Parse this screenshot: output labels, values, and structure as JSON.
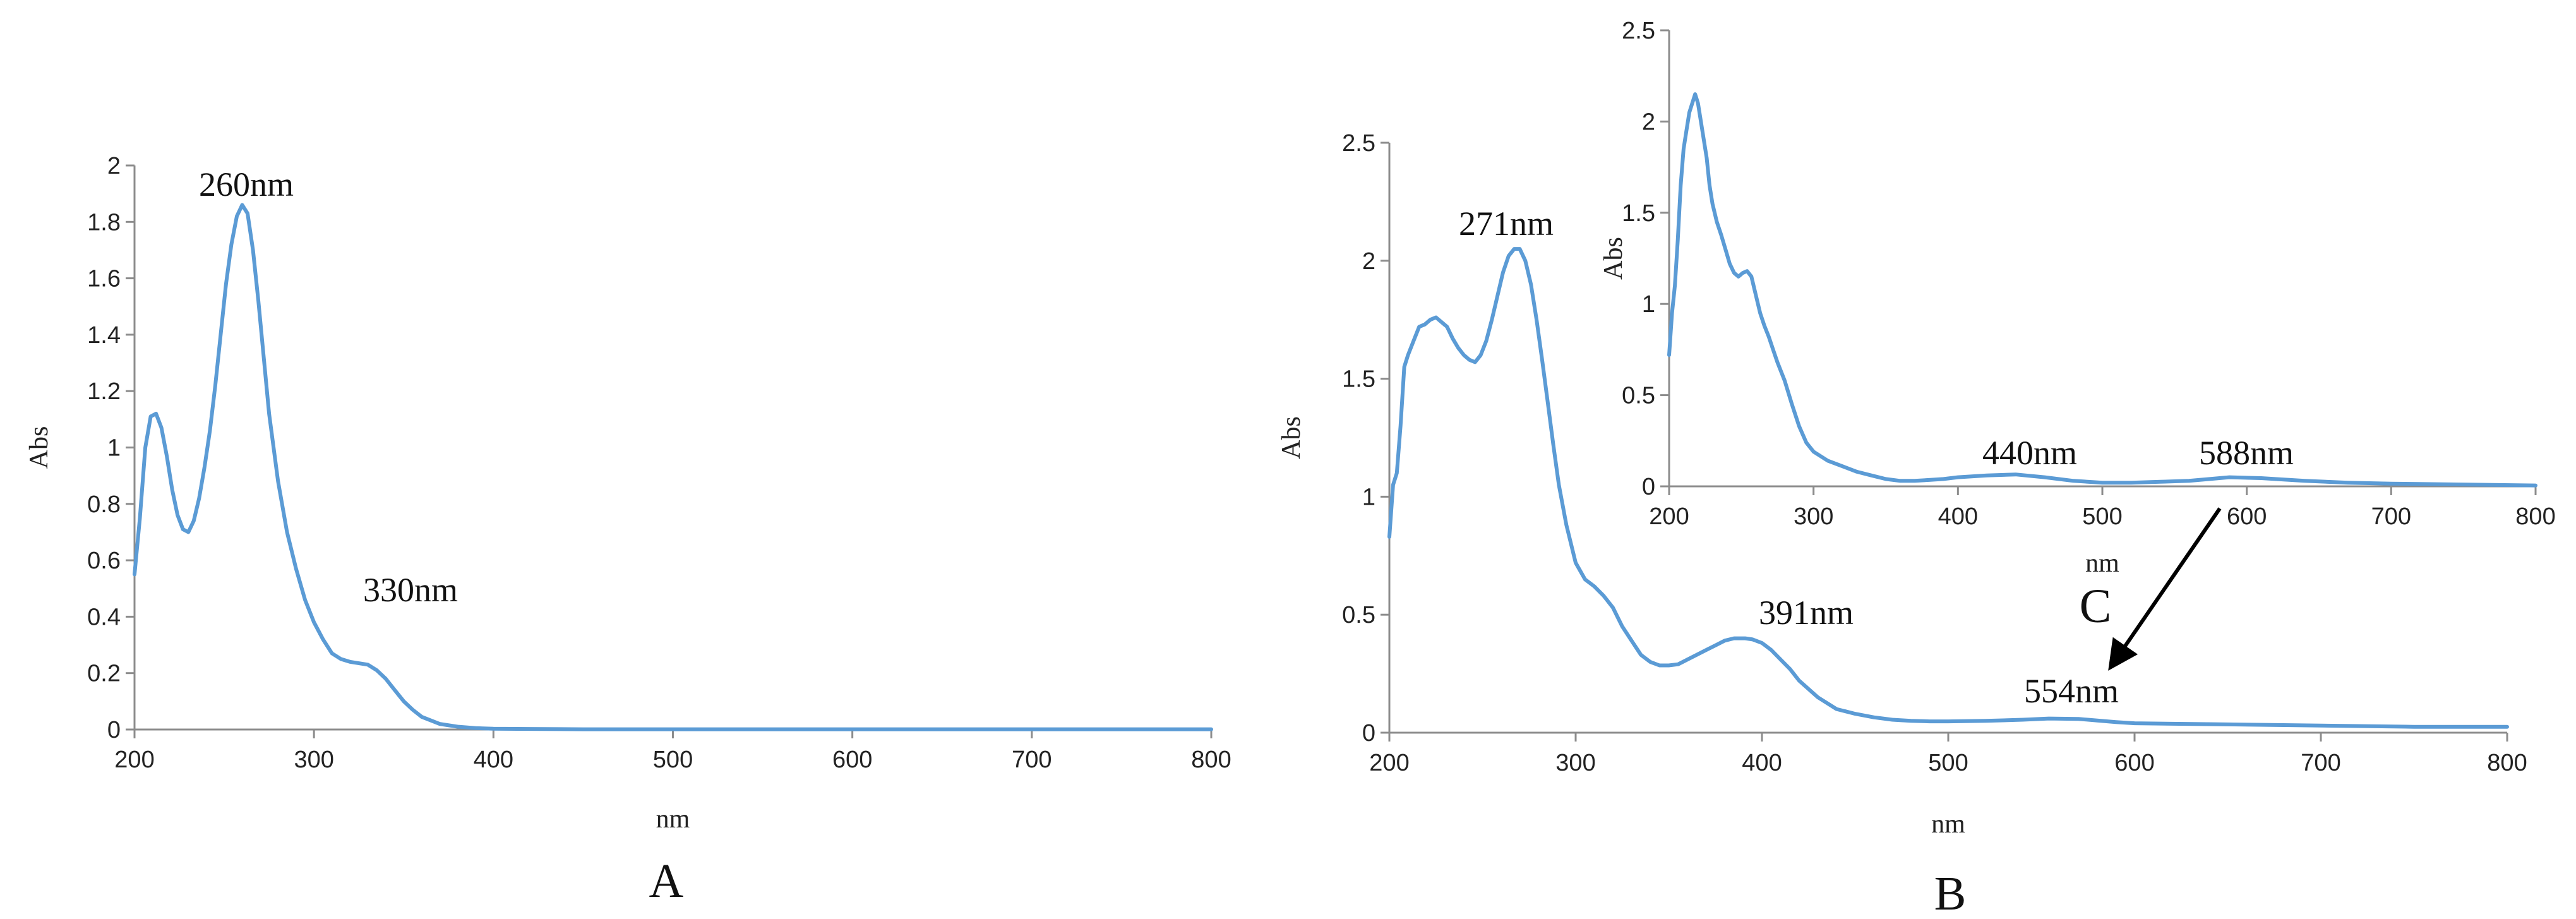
{
  "chart_data": [
    {
      "id": "A",
      "type": "line",
      "panel_label": "A",
      "xlabel": "nm",
      "ylabel": "Abs",
      "xlim": [
        200,
        800
      ],
      "ylim": [
        0,
        2
      ],
      "xticks": [
        200,
        300,
        400,
        500,
        600,
        700,
        800
      ],
      "yticks": [
        0,
        0.2,
        0.4,
        0.6,
        0.8,
        1,
        1.2,
        1.4,
        1.6,
        1.8,
        2
      ],
      "ytick_labels": [
        "0",
        "0.2",
        "0.4",
        "0.6",
        "0.8",
        "1",
        "1.2",
        "1.4",
        "1.6",
        "1.8",
        "2"
      ],
      "grid": false,
      "line_color": "#5b9bd5",
      "annotations": [
        {
          "text": "260nm",
          "x": 260,
          "y": 1.86
        },
        {
          "text": "330nm",
          "x": 330,
          "y": 0.23
        }
      ],
      "series": [
        {
          "x": [
            200,
            203,
            206,
            209,
            212,
            215,
            218,
            221,
            224,
            227,
            230,
            233,
            236,
            239,
            242,
            245,
            248,
            251,
            254,
            257,
            260,
            263,
            266,
            269,
            272,
            275,
            280,
            285,
            290,
            295,
            300,
            305,
            310,
            315,
            320,
            325,
            330,
            335,
            340,
            345,
            350,
            355,
            360,
            370,
            380,
            390,
            400,
            420,
            450,
            500,
            600,
            700,
            800
          ],
          "y": [
            0.55,
            0.75,
            1.0,
            1.11,
            1.12,
            1.07,
            0.97,
            0.85,
            0.76,
            0.71,
            0.7,
            0.74,
            0.82,
            0.93,
            1.06,
            1.22,
            1.4,
            1.58,
            1.72,
            1.82,
            1.86,
            1.83,
            1.7,
            1.52,
            1.32,
            1.12,
            0.88,
            0.7,
            0.57,
            0.46,
            0.38,
            0.32,
            0.27,
            0.25,
            0.24,
            0.235,
            0.23,
            0.21,
            0.18,
            0.14,
            0.1,
            0.07,
            0.045,
            0.02,
            0.01,
            0.005,
            0.003,
            0.002,
            0.001,
            0.001,
            0.001,
            0.001,
            0.001
          ]
        }
      ]
    },
    {
      "id": "B",
      "type": "line",
      "panel_label": "B",
      "xlabel": "nm",
      "ylabel": "Abs",
      "xlim": [
        200,
        800
      ],
      "ylim": [
        0,
        2.5
      ],
      "xticks": [
        200,
        300,
        400,
        500,
        600,
        700,
        800
      ],
      "yticks": [
        0,
        0.5,
        1,
        1.5,
        2,
        2.5
      ],
      "ytick_labels": [
        "0",
        "0.5",
        "1",
        "1.5",
        "2",
        "2.5"
      ],
      "grid": false,
      "line_color": "#5b9bd5",
      "annotations": [
        {
          "text": "271nm",
          "x": 271,
          "y": 2.05
        },
        {
          "text": "391nm",
          "x": 391,
          "y": 0.4
        },
        {
          "text": "554nm",
          "x": 554,
          "y": 0.06
        }
      ],
      "series": [
        {
          "x": [
            200,
            202,
            204,
            206,
            208,
            210,
            213,
            216,
            219,
            222,
            225,
            228,
            231,
            234,
            237,
            240,
            243,
            246,
            249,
            252,
            255,
            258,
            261,
            264,
            267,
            270,
            273,
            276,
            279,
            282,
            285,
            288,
            291,
            295,
            300,
            305,
            310,
            315,
            320,
            325,
            330,
            335,
            340,
            345,
            350,
            355,
            360,
            365,
            370,
            375,
            380,
            385,
            391,
            395,
            400,
            405,
            410,
            415,
            420,
            430,
            440,
            450,
            460,
            470,
            480,
            490,
            500,
            520,
            540,
            554,
            570,
            590,
            600,
            650,
            700,
            750,
            800
          ],
          "y": [
            0.83,
            1.05,
            1.1,
            1.3,
            1.55,
            1.6,
            1.66,
            1.72,
            1.73,
            1.75,
            1.76,
            1.74,
            1.72,
            1.67,
            1.63,
            1.6,
            1.58,
            1.57,
            1.6,
            1.66,
            1.75,
            1.85,
            1.95,
            2.02,
            2.05,
            2.05,
            2.0,
            1.9,
            1.75,
            1.58,
            1.4,
            1.22,
            1.05,
            0.88,
            0.72,
            0.65,
            0.62,
            0.58,
            0.53,
            0.45,
            0.39,
            0.33,
            0.3,
            0.285,
            0.285,
            0.29,
            0.31,
            0.33,
            0.35,
            0.37,
            0.39,
            0.4,
            0.4,
            0.395,
            0.38,
            0.35,
            0.31,
            0.27,
            0.22,
            0.15,
            0.1,
            0.08,
            0.065,
            0.055,
            0.05,
            0.048,
            0.048,
            0.05,
            0.055,
            0.06,
            0.058,
            0.045,
            0.04,
            0.035,
            0.03,
            0.025,
            0.025
          ]
        }
      ]
    },
    {
      "id": "C",
      "type": "line",
      "panel_label": "C",
      "xlabel": "nm",
      "ylabel": "Abs",
      "xlim": [
        200,
        800
      ],
      "ylim": [
        0,
        2.5
      ],
      "xticks": [
        200,
        300,
        400,
        500,
        600,
        700,
        800
      ],
      "yticks": [
        0,
        0.5,
        1,
        1.5,
        2,
        2.5
      ],
      "ytick_labels": [
        "0",
        "0.5",
        "1",
        "1.5",
        "2",
        "2.5"
      ],
      "grid": false,
      "line_color": "#5b9bd5",
      "annotations": [
        {
          "text": "440nm",
          "x": 440,
          "y": 0.06
        },
        {
          "text": "588nm",
          "x": 588,
          "y": 0.05
        }
      ],
      "series": [
        {
          "x": [
            200,
            202,
            204,
            206,
            208,
            210,
            212,
            214,
            216,
            218,
            220,
            222,
            224,
            226,
            228,
            230,
            233,
            236,
            239,
            242,
            245,
            248,
            251,
            254,
            257,
            260,
            263,
            266,
            269,
            272,
            275,
            280,
            285,
            290,
            295,
            300,
            310,
            320,
            330,
            340,
            350,
            360,
            370,
            380,
            390,
            400,
            420,
            440,
            460,
            480,
            500,
            520,
            540,
            560,
            588,
            610,
            640,
            670,
            700,
            750,
            800
          ],
          "y": [
            0.72,
            0.95,
            1.1,
            1.35,
            1.65,
            1.85,
            1.95,
            2.05,
            2.1,
            2.15,
            2.1,
            2.0,
            1.9,
            1.8,
            1.65,
            1.55,
            1.45,
            1.38,
            1.3,
            1.22,
            1.17,
            1.15,
            1.17,
            1.18,
            1.15,
            1.05,
            0.95,
            0.88,
            0.82,
            0.75,
            0.68,
            0.58,
            0.45,
            0.33,
            0.24,
            0.19,
            0.14,
            0.11,
            0.08,
            0.06,
            0.04,
            0.03,
            0.03,
            0.035,
            0.04,
            0.05,
            0.06,
            0.065,
            0.05,
            0.03,
            0.02,
            0.02,
            0.025,
            0.03,
            0.05,
            0.045,
            0.03,
            0.02,
            0.015,
            0.01,
            0.005
          ]
        }
      ]
    }
  ]
}
